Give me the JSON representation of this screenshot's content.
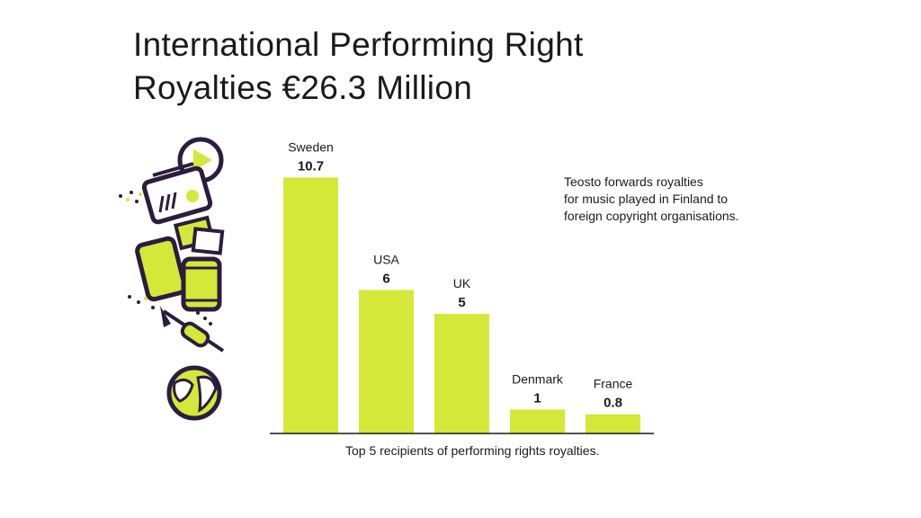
{
  "title_lines": [
    "International Performing Right",
    "Royalties €26.3 Million"
  ],
  "note_lines": [
    "Teosto forwards royalties",
    "for music played in Finland to",
    "foreign copyright organisations."
  ],
  "caption": "Top 5 recipients of performing rights royalties.",
  "colors": {
    "bar": "#d4e83a",
    "ink": "#2b1d3d",
    "text": "#1a1a1a"
  },
  "icons": [
    "play-icon",
    "radio-icon",
    "ticket-icon",
    "tablet-icon",
    "phone-icon",
    "trumpet-icon",
    "globe-icon"
  ],
  "chart_data": {
    "type": "bar",
    "categories": [
      "Sweden",
      "USA",
      "UK",
      "Denmark",
      "France"
    ],
    "values": [
      10.7,
      6,
      5,
      1,
      0.8
    ],
    "value_labels": [
      "10.7",
      "6",
      "5",
      "1",
      "0.8"
    ],
    "ylim": [
      0,
      12
    ],
    "grid": false,
    "legend": "none"
  }
}
